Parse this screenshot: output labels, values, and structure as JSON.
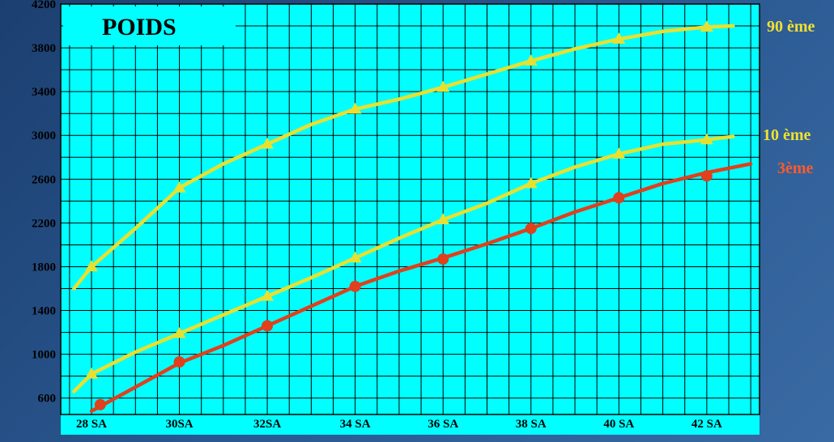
{
  "chart_data": {
    "type": "line",
    "title": "POIDS",
    "xlabel": "",
    "ylabel": "",
    "categories": [
      "28 SA",
      "30SA",
      "32SA",
      "34 SA",
      "36 SA",
      "38 SA",
      "40 SA",
      "42 SA"
    ],
    "x_values": [
      28,
      30,
      32,
      34,
      36,
      38,
      40,
      42
    ],
    "xlim": [
      27.3,
      43.2
    ],
    "ylim": [
      450,
      4200
    ],
    "yticks": [
      600,
      1000,
      1400,
      1800,
      2200,
      2600,
      3000,
      3400,
      3800,
      4200
    ],
    "grid": true,
    "background_color": "#00ffff",
    "series": [
      {
        "name": "90 ème",
        "color": "#e8e030",
        "marker": "triangle",
        "line": [
          [
            27.6,
            1600
          ],
          [
            28,
            1800
          ],
          [
            29,
            2150
          ],
          [
            30,
            2520
          ],
          [
            31,
            2740
          ],
          [
            32,
            2920
          ],
          [
            33,
            3100
          ],
          [
            34,
            3240
          ],
          [
            35,
            3330
          ],
          [
            36,
            3440
          ],
          [
            37,
            3560
          ],
          [
            38,
            3680
          ],
          [
            39,
            3790
          ],
          [
            40,
            3880
          ],
          [
            41,
            3950
          ],
          [
            42,
            3990
          ],
          [
            42.6,
            4000
          ]
        ],
        "x": [
          28,
          30,
          32,
          34,
          36,
          38,
          40,
          42
        ],
        "values": [
          1800,
          2520,
          2920,
          3240,
          3440,
          3680,
          3880,
          3990
        ]
      },
      {
        "name": "10 ème",
        "color": "#e8e030",
        "marker": "triangle",
        "line": [
          [
            27.6,
            660
          ],
          [
            28,
            820
          ],
          [
            29,
            1020
          ],
          [
            30,
            1190
          ],
          [
            31,
            1360
          ],
          [
            32,
            1530
          ],
          [
            33,
            1700
          ],
          [
            34,
            1880
          ],
          [
            35,
            2060
          ],
          [
            36,
            2230
          ],
          [
            37,
            2380
          ],
          [
            38,
            2560
          ],
          [
            39,
            2710
          ],
          [
            40,
            2830
          ],
          [
            41,
            2920
          ],
          [
            42,
            2960
          ],
          [
            42.6,
            2990
          ]
        ],
        "x": [
          28,
          30,
          32,
          34,
          36,
          38,
          40,
          42
        ],
        "values": [
          820,
          1190,
          1530,
          1880,
          2230,
          2560,
          2830,
          2960
        ]
      },
      {
        "name": "3ème",
        "color": "#e0401c",
        "marker": "circle",
        "line": [
          [
            28,
            480
          ],
          [
            29,
            700
          ],
          [
            30,
            920
          ],
          [
            31,
            1080
          ],
          [
            32,
            1260
          ],
          [
            33,
            1440
          ],
          [
            34,
            1620
          ],
          [
            35,
            1760
          ],
          [
            36,
            1880
          ],
          [
            37,
            2010
          ],
          [
            38,
            2150
          ],
          [
            39,
            2300
          ],
          [
            40,
            2430
          ],
          [
            41,
            2560
          ],
          [
            42,
            2660
          ],
          [
            43,
            2740
          ]
        ],
        "x": [
          28.2,
          30,
          32,
          34,
          36,
          38,
          40,
          42
        ],
        "values": [
          540,
          930,
          1260,
          1620,
          1870,
          2150,
          2430,
          2630
        ]
      }
    ]
  }
}
